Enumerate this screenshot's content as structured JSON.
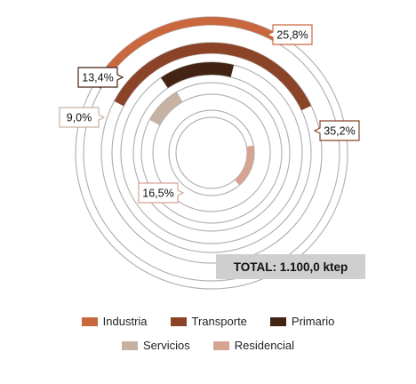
{
  "chart_data": {
    "type": "donut-rings",
    "series": [
      {
        "name": "Industria",
        "value": 25.8,
        "label": "25,8%",
        "color": "#c9683f"
      },
      {
        "name": "Transporte",
        "value": 35.2,
        "label": "35,2%",
        "color": "#8b4428"
      },
      {
        "name": "Primario",
        "value": 13.4,
        "label": "13,4%",
        "color": "#432414"
      },
      {
        "name": "Servicios",
        "value": 9.0,
        "label": "9,0%",
        "color": "#c5b2a4"
      },
      {
        "name": "Residencial",
        "value": 16.5,
        "label": "16,5%",
        "color": "#d6a493"
      }
    ],
    "total_label": "TOTAL: 1.100,0 ktep",
    "legend_position": "bottom"
  }
}
